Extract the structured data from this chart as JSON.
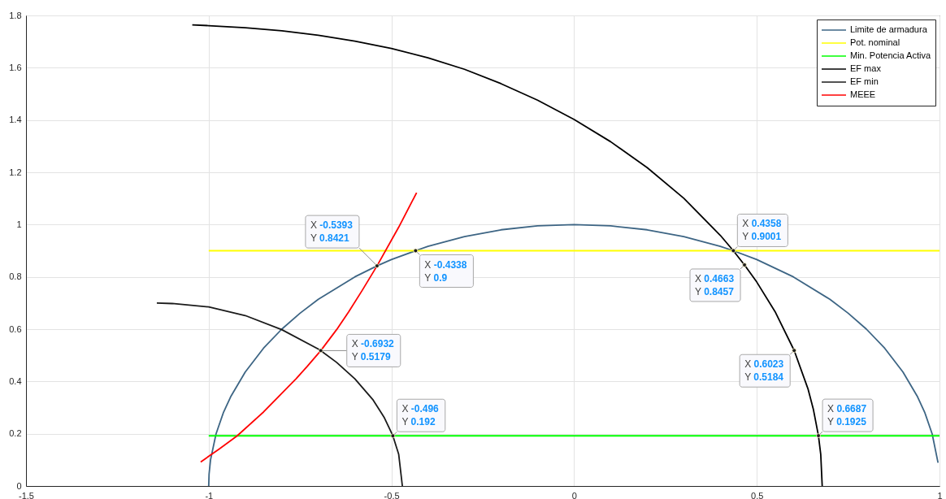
{
  "chart_data": {
    "type": "line",
    "series": [
      {
        "name": "Limite de armadura",
        "color": "#3d6584",
        "x": [
          -1,
          -0.999,
          -0.995,
          -0.98,
          -0.96,
          -0.94,
          -0.9,
          -0.85,
          -0.8,
          -0.75,
          -0.7,
          -0.6,
          -0.5393,
          -0.5,
          -0.4338,
          -0.4,
          -0.3,
          -0.2,
          -0.1,
          0,
          0.1,
          0.2,
          0.3,
          0.4,
          0.4358,
          0.5,
          0.6,
          0.7,
          0.75,
          0.8,
          0.85,
          0.9,
          0.94,
          0.96,
          0.98,
          0.996
        ],
        "values": [
          0,
          0.045,
          0.1,
          0.199,
          0.28,
          0.341,
          0.436,
          0.527,
          0.6,
          0.661,
          0.714,
          0.8,
          0.8421,
          0.866,
          0.9,
          0.917,
          0.954,
          0.98,
          0.995,
          1,
          0.995,
          0.98,
          0.954,
          0.917,
          0.9,
          0.866,
          0.8,
          0.714,
          0.661,
          0.6,
          0.527,
          0.436,
          0.341,
          0.28,
          0.199,
          0.089
        ]
      },
      {
        "name": "Pot. nominal",
        "color": "#ffff00",
        "x": [
          -1,
          1
        ],
        "values": [
          0.9,
          0.9
        ]
      },
      {
        "name": "Min. Potencia Activa",
        "color": "#00ff00",
        "x": [
          -1,
          1
        ],
        "values": [
          0.192,
          0.192
        ]
      },
      {
        "name": "EF max",
        "color": "#000000",
        "x": [
          -1.045,
          -1,
          -0.9,
          -0.8,
          -0.7,
          -0.6,
          -0.5,
          -0.4,
          -0.3,
          -0.2,
          -0.1,
          0,
          0.1,
          0.2,
          0.3,
          0.4,
          0.4358,
          0.4663,
          0.5,
          0.55,
          0.6023,
          0.64,
          0.655,
          0.6687,
          0.675,
          0.679
        ],
        "values": [
          1.764,
          1.761,
          1.753,
          1.741,
          1.724,
          1.702,
          1.674,
          1.638,
          1.594,
          1.539,
          1.476,
          1.402,
          1.317,
          1.218,
          1.101,
          0.959,
          0.9001,
          0.8457,
          0.78,
          0.667,
          0.5184,
          0.372,
          0.292,
          0.1925,
          0.121,
          0
        ]
      },
      {
        "name": "EF min",
        "color": "#1a1a1a",
        "x": [
          -1.142,
          -1.1,
          -1,
          -0.9,
          -0.8,
          -0.7,
          -0.6932,
          -0.65,
          -0.6,
          -0.55,
          -0.52,
          -0.496,
          -0.48,
          -0.47
        ],
        "values": [
          0.7,
          0.698,
          0.685,
          0.652,
          0.598,
          0.524,
          0.5179,
          0.473,
          0.41,
          0.329,
          0.263,
          0.192,
          0.121,
          0
        ]
      },
      {
        "name": "MEEE",
        "color": "#ff0000",
        "x": [
          -1.022,
          -0.972,
          -0.922,
          -0.85,
          -0.761,
          -0.73,
          -0.6932,
          -0.65,
          -0.617,
          -0.58,
          -0.5393,
          -0.48,
          -0.431
        ],
        "values": [
          0.092,
          0.141,
          0.192,
          0.283,
          0.41,
          0.458,
          0.5179,
          0.598,
          0.666,
          0.748,
          0.8421,
          0.99,
          1.122
        ]
      }
    ],
    "xlim": [
      -1.5,
      1
    ],
    "ylim": [
      0,
      1.8
    ],
    "xticks": [
      -1.5,
      -1,
      -0.5,
      0,
      0.5,
      1
    ],
    "yticks": [
      0,
      0.2,
      0.4,
      0.6,
      0.8,
      1,
      1.2,
      1.4,
      1.6,
      1.8
    ],
    "grid": true,
    "legend": "top right",
    "annotations": [
      {
        "text": "X -0.4338\nY 0.9",
        "x": -0.4338,
        "y": 0.9
      },
      {
        "text": "X -0.5393\nY 0.8421",
        "x": -0.5393,
        "y": 0.8421
      },
      {
        "text": "X 0.4358\nY 0.9001",
        "x": 0.4358,
        "y": 0.9001
      },
      {
        "text": "X 0.4663\nY 0.8457",
        "x": 0.4663,
        "y": 0.8457
      },
      {
        "text": "X -0.6932\nY 0.5179",
        "x": -0.6932,
        "y": 0.5179
      },
      {
        "text": "X 0.6023\nY 0.5184",
        "x": 0.6023,
        "y": 0.5184
      },
      {
        "text": "X -0.496\nY 0.192",
        "x": -0.496,
        "y": 0.192
      },
      {
        "text": "X 0.6687\nY 0.1925",
        "x": 0.6687,
        "y": 0.1925
      }
    ]
  }
}
